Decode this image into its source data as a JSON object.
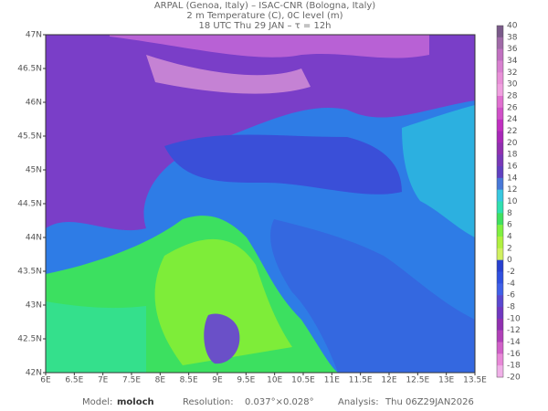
{
  "header": {
    "lines": [
      "ARPAL (Genoa, Italy)  –  ISAC-CNR (Bologna, Italy)",
      "2 m Temperature (C), 0C level (m)",
      "18 UTC Thu 29 JAN  –  τ = 12h"
    ]
  },
  "axes": {
    "y_labels": [
      "47N",
      "46.5N",
      "46N",
      "45.5N",
      "45N",
      "44.5N",
      "44N",
      "43.5N",
      "43N",
      "42.5N",
      "42N"
    ],
    "x_labels": [
      "6E",
      "6.5E",
      "7E",
      "7.5E",
      "8E",
      "8.5E",
      "9E",
      "9.5E",
      "10E",
      "10.5E",
      "11E",
      "11.5E",
      "12E",
      "12.5E",
      "13E",
      "13.5E"
    ]
  },
  "colorbar": {
    "labels": [
      40,
      38,
      36,
      34,
      32,
      30,
      28,
      26,
      24,
      22,
      20,
      18,
      16,
      14,
      12,
      10,
      8,
      6,
      4,
      2,
      0,
      -2,
      -4,
      -6,
      -8,
      -10,
      -12,
      -14,
      -16,
      -18,
      -20
    ]
  },
  "footer": {
    "model_label": "Model:",
    "model": "moloch",
    "resolution_label": "Resolution:",
    "resolution": "0.037°×0.028°",
    "analysis_label": "Analysis:",
    "analysis": "Thu 06Z29JAN2026"
  }
}
